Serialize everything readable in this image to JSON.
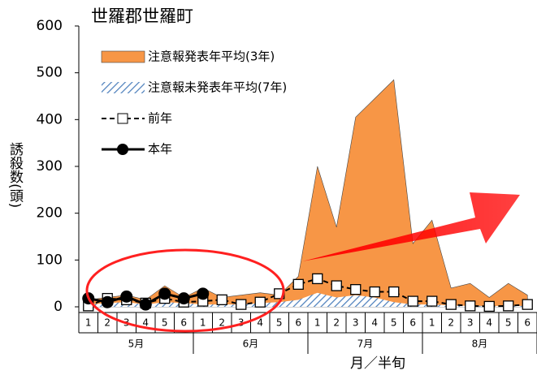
{
  "chart_data": {
    "type": "line",
    "title": "世羅郡世羅町",
    "y_label": "誘殺数(頭)",
    "x_label": "月／半旬",
    "categories": [
      "1",
      "2",
      "3",
      "4",
      "5",
      "6",
      "1",
      "2",
      "3",
      "4",
      "5",
      "6",
      "1",
      "2",
      "3",
      "4",
      "5",
      "6",
      "1",
      "2",
      "3",
      "4",
      "5",
      "6"
    ],
    "groups": [
      "5月",
      "6月",
      "7月",
      "8月"
    ],
    "ylim": [
      0,
      600
    ],
    "yticks": [
      0,
      100,
      200,
      300,
      400,
      500,
      600
    ],
    "grid": false,
    "series": [
      {
        "name": "注意報発表年平均(3年)",
        "kind": "area",
        "color": "#f79646",
        "values": [
          15,
          20,
          25,
          15,
          45,
          20,
          40,
          20,
          25,
          30,
          25,
          65,
          300,
          170,
          405,
          445,
          485,
          135,
          185,
          40,
          50,
          20,
          50,
          25
        ]
      },
      {
        "name": "注意報未発表年平均(7年)",
        "kind": "hatched-area",
        "color": "#4f81bd",
        "values": [
          5,
          8,
          10,
          5,
          10,
          8,
          5,
          5,
          5,
          8,
          10,
          15,
          30,
          20,
          25,
          20,
          10,
          5,
          5,
          3,
          2,
          2,
          2,
          2
        ]
      },
      {
        "name": "前年",
        "kind": "dashed-square",
        "color": "#000000",
        "values": [
          2,
          18,
          15,
          8,
          18,
          10,
          12,
          15,
          5,
          10,
          28,
          48,
          60,
          45,
          37,
          32,
          32,
          12,
          12,
          5,
          2,
          1,
          2,
          5
        ]
      },
      {
        "name": "本年",
        "kind": "solid-circle",
        "color": "#000000",
        "values": [
          18,
          10,
          22,
          5,
          28,
          18,
          28,
          null,
          null,
          null,
          null,
          null,
          null,
          null,
          null,
          null,
          null,
          null,
          null,
          null,
          null,
          null,
          null,
          null
        ]
      }
    ]
  }
}
